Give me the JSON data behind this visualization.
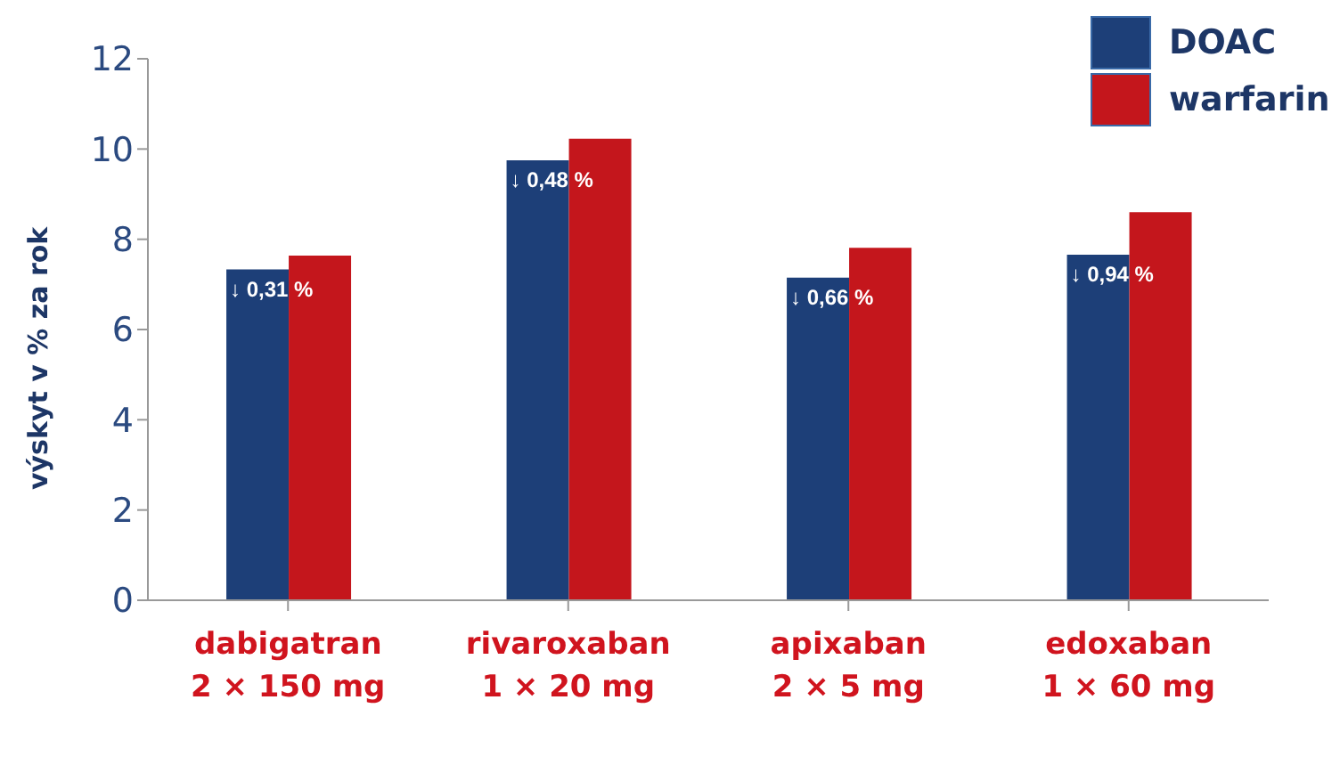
{
  "chart_data": {
    "type": "bar",
    "ylabel": "výskyt v % za rok",
    "categories": [
      "dabigatran\n2 × 150 mg",
      "rivaroxaban\n1 × 20 mg",
      "apixaban\n2 × 5 mg",
      "edoxaban\n1 × 60 mg"
    ],
    "series": [
      {
        "name": "DOAC",
        "color": "#1d3f78",
        "values": [
          7.33,
          9.75,
          7.15,
          7.66
        ]
      },
      {
        "name": "warfarin",
        "color": "#c4161c",
        "values": [
          7.64,
          10.23,
          7.81,
          8.6
        ]
      }
    ],
    "ylim": [
      0,
      12
    ],
    "yticks": [
      0,
      2,
      4,
      6,
      8,
      10,
      12
    ],
    "grid": false,
    "legend": "top right",
    "annotations": [
      {
        "text": "↓ 0,31 %",
        "x": "dabigatran\n2 × 150 mg",
        "y": 7.33
      },
      {
        "text": "↓ 0,48 %",
        "x": "rivaroxaban\n1 × 20 mg",
        "y": 9.75
      },
      {
        "text": "↓ 0,66 %",
        "x": "apixaban\n2 × 5 mg",
        "y": 7.15
      },
      {
        "text": "↓ 0,94 %",
        "x": "edoxaban\n1 × 60 mg",
        "y": 7.66
      }
    ]
  }
}
